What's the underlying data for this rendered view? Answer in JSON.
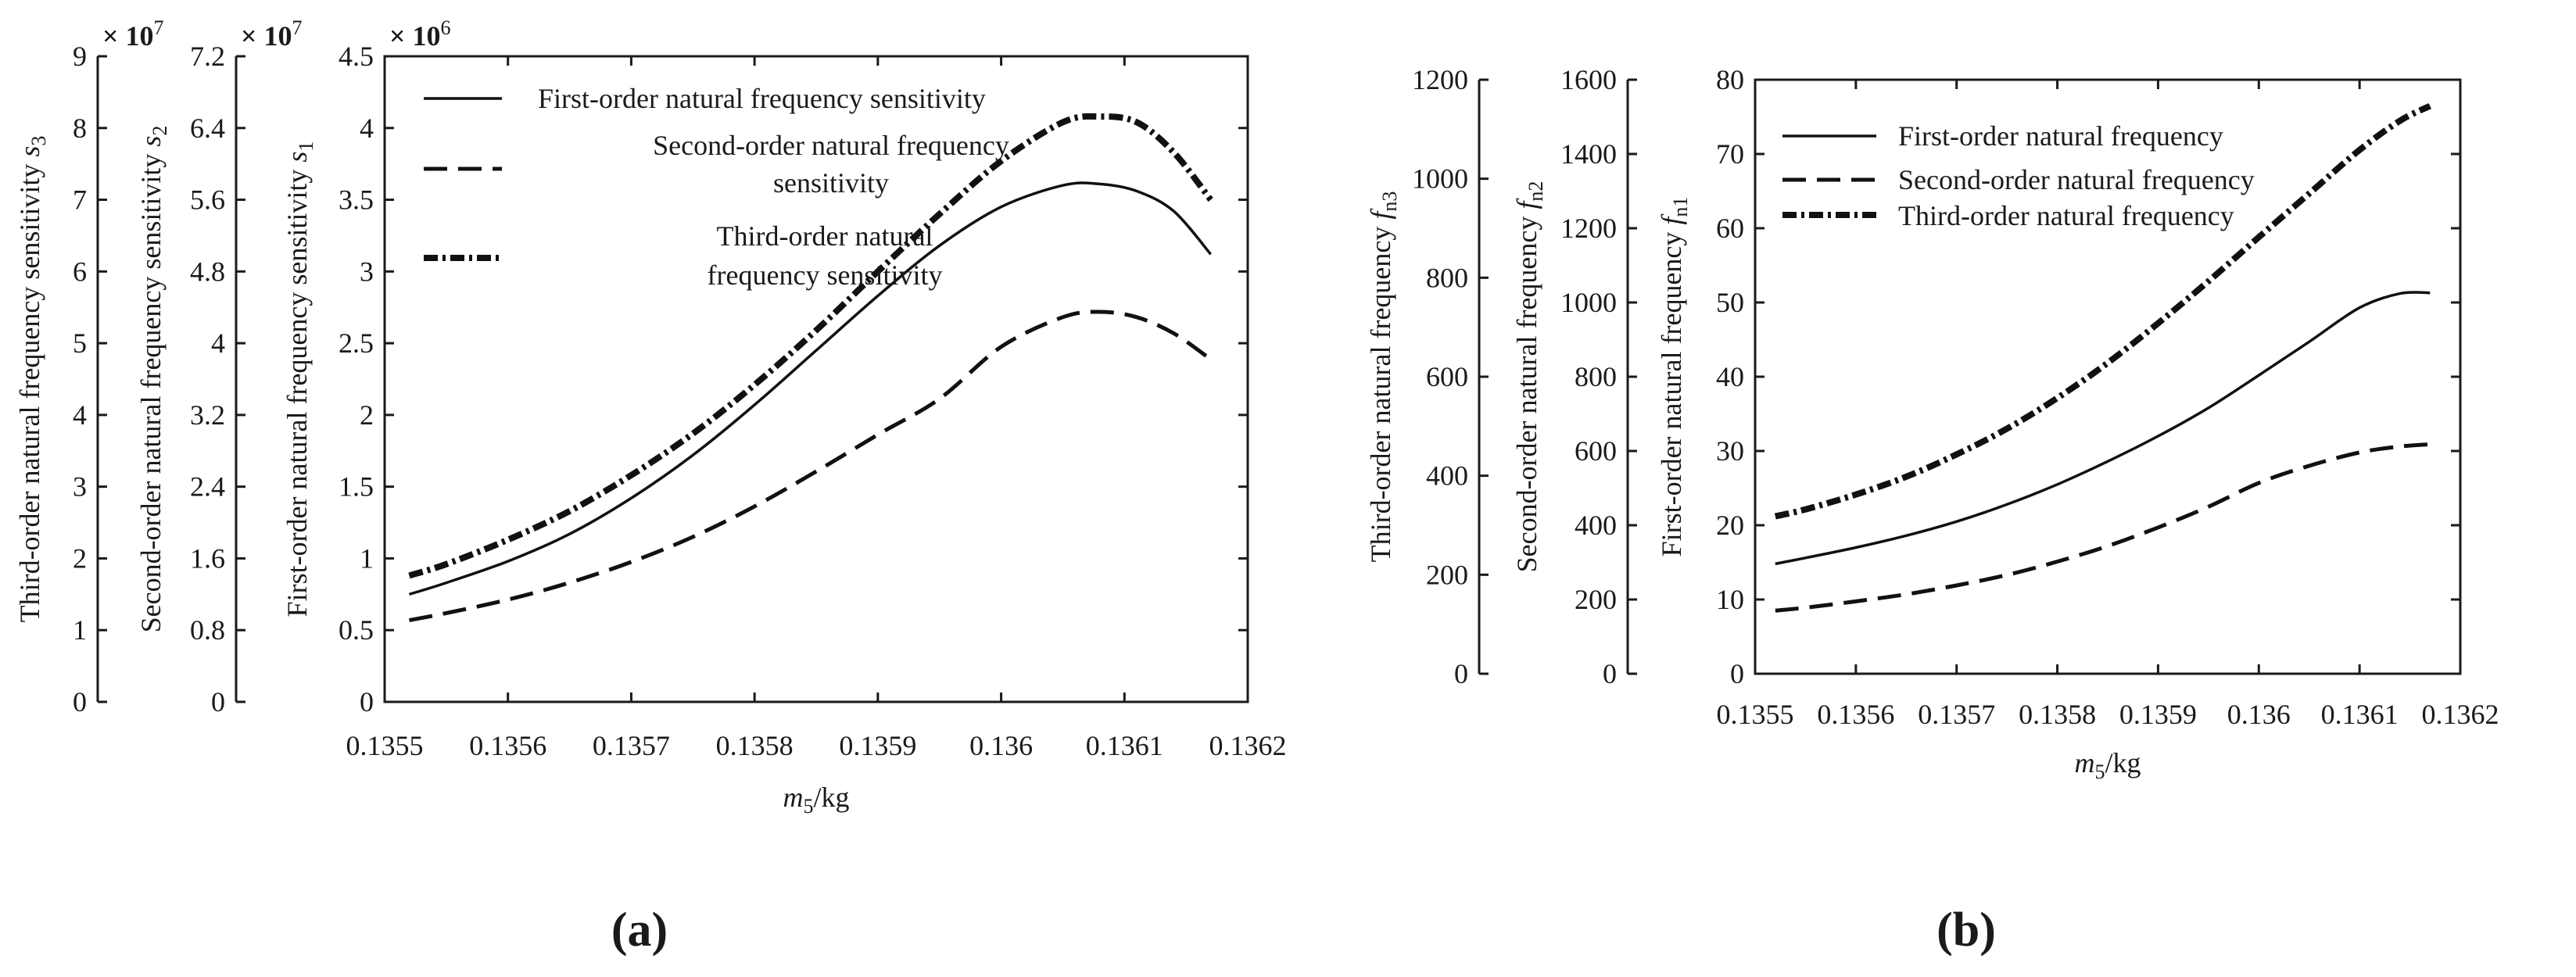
{
  "chart_data": [
    {
      "type": "line",
      "panel_label": "(a)",
      "xlabel": "m",
      "xlabel_sub": "5",
      "xlabel_unit": "/kg",
      "xlim": [
        0.1355,
        0.1362
      ],
      "xticks": [
        "0.1355",
        "0.1356",
        "0.1357",
        "0.1358",
        "0.1359",
        "0.136",
        "0.1361",
        "0.1362"
      ],
      "y_axes": [
        {
          "label": "First-order natural frequency sensitivity s",
          "label_main": "First-order natural frequency sensitivity ",
          "label_var": "s",
          "label_sub": "1",
          "scale_mark": "× 10",
          "scale_exp": "6",
          "ylim": [
            0,
            4.5
          ],
          "ticks": [
            "0",
            "0.5",
            "1",
            "1.5",
            "2",
            "2.5",
            "3",
            "3.5",
            "4",
            "4.5"
          ]
        },
        {
          "label_main": "Second-order natural frequency sensitivity ",
          "label_var": "s",
          "label_sub": "2",
          "scale_mark": "× 10",
          "scale_exp": "7",
          "ylim": [
            0,
            7.2
          ],
          "ticks": [
            "0",
            "0.8",
            "1.6",
            "2.4",
            "3.2",
            "4",
            "4.8",
            "5.6",
            "6.4",
            "7.2"
          ]
        },
        {
          "label_main": "Third-order natural frequency sensitivity ",
          "label_var": "s",
          "label_sub": "3",
          "scale_mark": "× 10",
          "scale_exp": "7",
          "ylim": [
            0,
            9
          ],
          "ticks": [
            "0",
            "1",
            "2",
            "3",
            "4",
            "5",
            "6",
            "7",
            "8",
            "9"
          ]
        }
      ],
      "series": [
        {
          "name": "First-order natural frequency sensitivity",
          "style": "solid",
          "axis": 0,
          "x": [
            0.13552,
            0.13555,
            0.1356,
            0.13565,
            0.1357,
            0.13575,
            0.1358,
            0.13585,
            0.1359,
            0.13595,
            0.136,
            0.13605,
            0.13608,
            0.13611,
            0.13614,
            0.13617
          ],
          "values": [
            0.75,
            0.83,
            0.98,
            1.17,
            1.42,
            1.72,
            2.07,
            2.45,
            2.83,
            3.18,
            3.45,
            3.6,
            3.61,
            3.56,
            3.42,
            3.12
          ]
        },
        {
          "name": "Second-order natural frequency sensitivity",
          "style": "dashed",
          "axis": 1,
          "x": [
            0.13552,
            0.13555,
            0.1356,
            0.13565,
            0.1357,
            0.13575,
            0.1358,
            0.13585,
            0.1359,
            0.13595,
            0.136,
            0.13605,
            0.13608,
            0.13611,
            0.13614,
            0.13617
          ],
          "values": [
            0.91,
            0.99,
            1.14,
            1.33,
            1.56,
            1.84,
            2.18,
            2.57,
            2.98,
            3.38,
            3.96,
            4.29,
            4.35,
            4.29,
            4.11,
            3.82
          ]
        },
        {
          "name": "Third-order natural frequency sensitivity",
          "style": "dash-dot-thick",
          "axis": 2,
          "x": [
            0.13552,
            0.13555,
            0.1356,
            0.13565,
            0.1357,
            0.13575,
            0.1358,
            0.13585,
            0.1359,
            0.13595,
            0.136,
            0.13605,
            0.13608,
            0.13611,
            0.13614,
            0.13617
          ],
          "values": [
            1.76,
            1.92,
            2.26,
            2.66,
            3.16,
            3.74,
            4.42,
            5.18,
            6.0,
            6.8,
            7.54,
            8.08,
            8.16,
            8.08,
            7.66,
            7.0
          ]
        }
      ],
      "legend": [
        [
          "First-order natural frequency sensitivity"
        ],
        [
          "Second-order natural frequency",
          "sensitivity"
        ],
        [
          "Third-order",
          "natural",
          "frequency sensitivity"
        ]
      ]
    },
    {
      "type": "line",
      "panel_label": "(b)",
      "xlabel": "m",
      "xlabel_sub": "5",
      "xlabel_unit": "/kg",
      "xlim": [
        0.1355,
        0.1362
      ],
      "xticks": [
        "0.1355",
        "0.1356",
        "0.1357",
        "0.1358",
        "0.1359",
        "0.136",
        "0.1361",
        "0.1362"
      ],
      "y_axes": [
        {
          "label_main": "First-order natural frequency ",
          "label_var": "f",
          "label_sub": "n1",
          "ylim": [
            0,
            80
          ],
          "ticks": [
            "0",
            "10",
            "20",
            "30",
            "40",
            "50",
            "60",
            "70",
            "80"
          ]
        },
        {
          "label_main": "Second-order natural frequency ",
          "label_var": "f",
          "label_sub": "n2",
          "ylim": [
            0,
            1600
          ],
          "ticks": [
            "0",
            "200",
            "400",
            "600",
            "800",
            "1000",
            "1200",
            "1400",
            "1600"
          ]
        },
        {
          "label_main": "Third-order natural frequency ",
          "label_var": "f",
          "label_sub": "n3",
          "ylim": [
            0,
            1200
          ],
          "ticks": [
            "0",
            "200",
            "400",
            "600",
            "800",
            "1000",
            "1200"
          ]
        }
      ],
      "series": [
        {
          "name": "First-order natural frequency",
          "style": "solid",
          "axis": 0,
          "x": [
            0.13552,
            0.13555,
            0.1356,
            0.13565,
            0.1357,
            0.13575,
            0.1358,
            0.13585,
            0.1359,
            0.13595,
            0.136,
            0.13605,
            0.1361,
            0.13614,
            0.13617
          ],
          "values": [
            14.8,
            15.6,
            17.0,
            18.6,
            20.5,
            22.8,
            25.5,
            28.6,
            32.0,
            35.8,
            40.2,
            44.7,
            49.3,
            51.2,
            51.3
          ]
        },
        {
          "name": "Second-order natural frequency",
          "style": "dashed",
          "axis": 1,
          "x": [
            0.13552,
            0.13555,
            0.1356,
            0.13565,
            0.1357,
            0.13575,
            0.1358,
            0.13585,
            0.1359,
            0.13595,
            0.136,
            0.13605,
            0.1361,
            0.13614,
            0.13617
          ],
          "values": [
            170,
            178,
            195,
            214,
            238,
            266,
            302,
            344,
            394,
            450,
            514,
            560,
            596,
            612,
            618
          ]
        },
        {
          "name": "Third-order natural frequency",
          "style": "dash-dot-thick",
          "axis": 2,
          "x": [
            0.13552,
            0.13555,
            0.1356,
            0.13565,
            0.1357,
            0.13575,
            0.1358,
            0.13585,
            0.1359,
            0.13595,
            0.136,
            0.13605,
            0.1361,
            0.13614,
            0.13617
          ],
          "values": [
            318,
            332,
            362,
            398,
            443,
            495,
            557,
            628,
            708,
            793,
            882,
            970,
            1058,
            1117,
            1147
          ]
        }
      ],
      "legend": [
        [
          "First-order natural frequency"
        ],
        [
          "Second-order natural frequency"
        ],
        [
          "Third-order natural frequency"
        ]
      ]
    }
  ]
}
